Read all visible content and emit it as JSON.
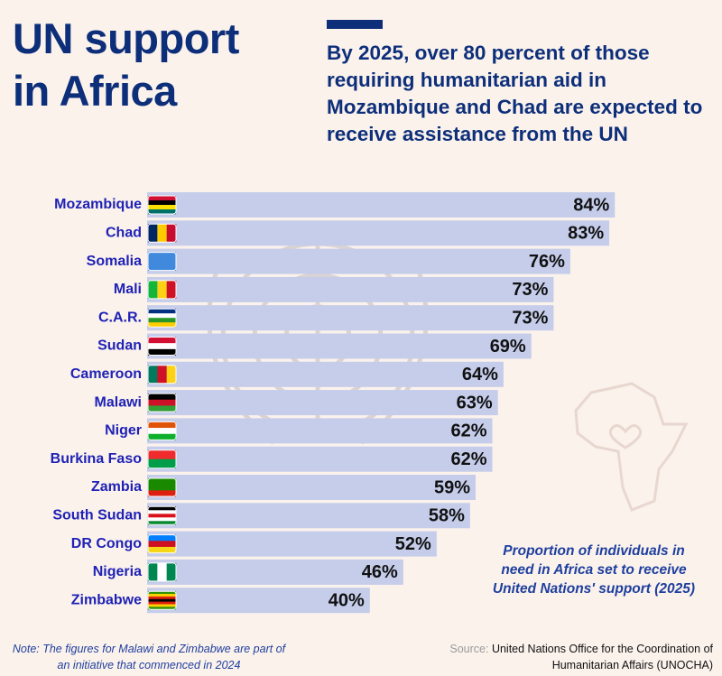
{
  "chart_data": {
    "type": "bar",
    "title": "UN support in Africa",
    "subtitle": "By 2025, over 80 percent of those requiring humanitarian aid in Mozambique and Chad are expected to receive assistance from the UN",
    "categories": [
      "Mozambique",
      "Chad",
      "Somalia",
      "Mali",
      "C.A.R.",
      "Sudan",
      "Cameroon",
      "Malawi",
      "Niger",
      "Burkina Faso",
      "Zambia",
      "South Sudan",
      "DR Congo",
      "Nigeria",
      "Zimbabwe"
    ],
    "values": [
      84,
      83,
      76,
      73,
      73,
      69,
      64,
      63,
      62,
      62,
      59,
      58,
      52,
      46,
      40
    ],
    "value_labels": [
      "84%",
      "83%",
      "76%",
      "73%",
      "73%",
      "69%",
      "64%",
      "63%",
      "62%",
      "62%",
      "59%",
      "58%",
      "52%",
      "46%",
      "40%"
    ],
    "color": "#c5cdea",
    "caption": "Proportion of individuals in need in Africa set to receive United Nations' support (2025)",
    "note": "Note: The figures for Malawi and Zimbabwe are part of an initiative that commenced in 2024",
    "source_label": "Source:",
    "source": "United Nations Office for the Coordination of Humanitarian Affairs (UNOCHA)"
  }
}
